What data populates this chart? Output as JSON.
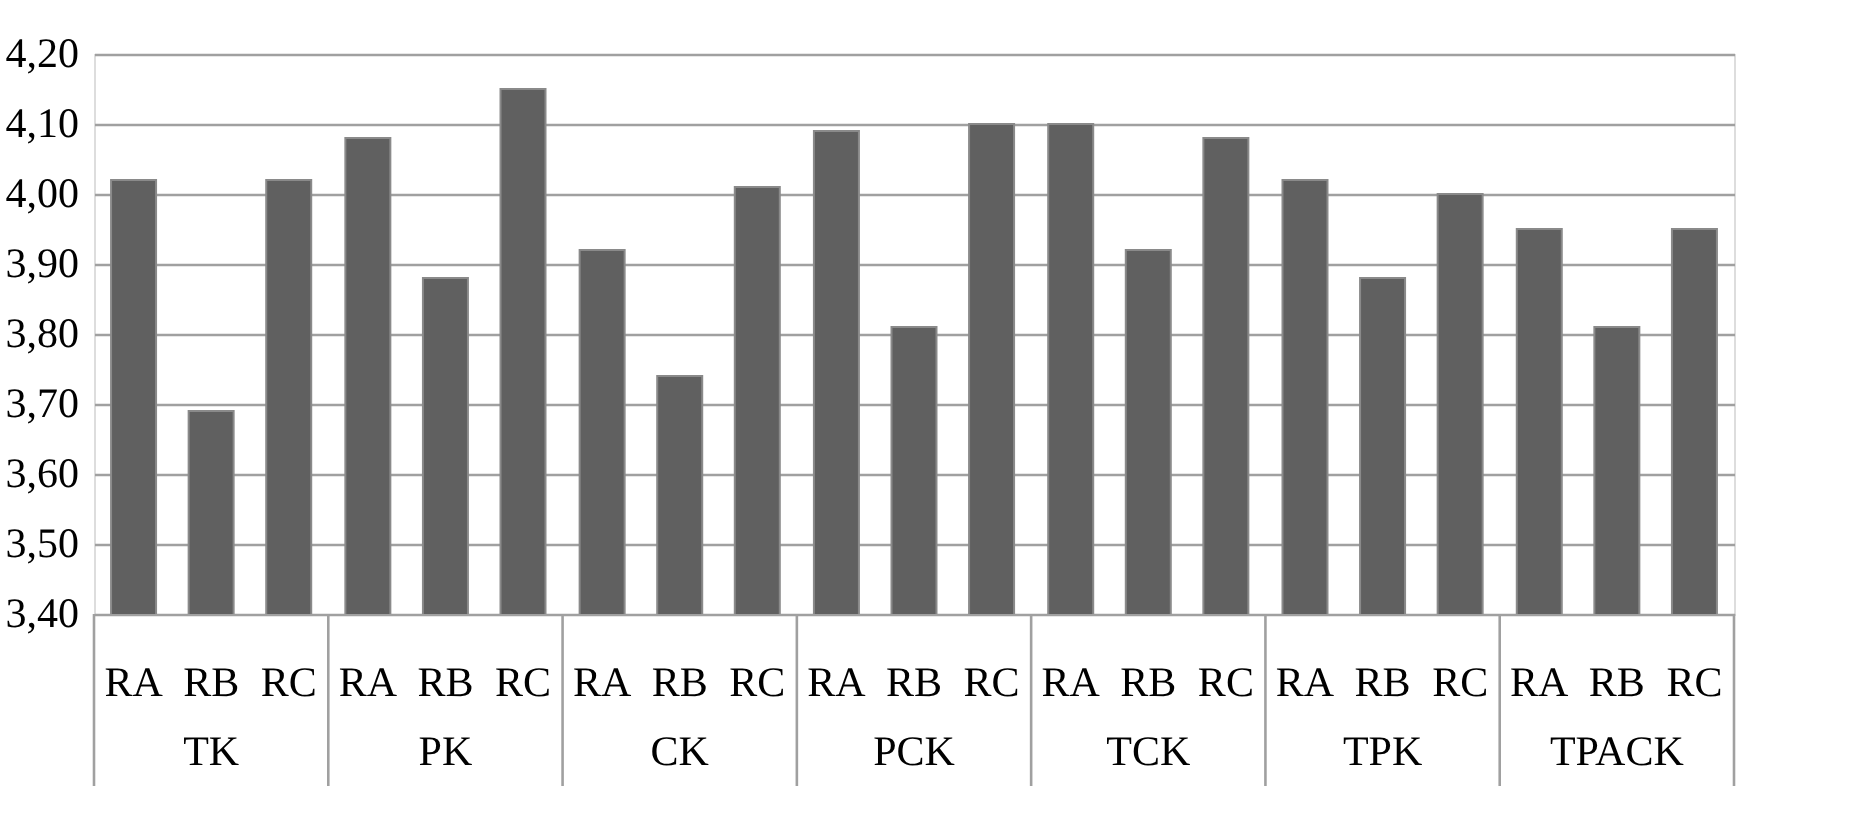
{
  "chart_data": {
    "type": "bar",
    "categories": [
      "TK",
      "PK",
      "CK",
      "PCK",
      "TCK",
      "TPK",
      "TPACK"
    ],
    "series": [
      {
        "name": "RA",
        "color": "#606060",
        "values": [
          4.02,
          4.08,
          3.92,
          4.09,
          4.1,
          4.02,
          3.95
        ]
      },
      {
        "name": "RB",
        "color": "#606060",
        "values": [
          3.69,
          3.88,
          3.74,
          3.81,
          3.92,
          3.88,
          3.81
        ]
      },
      {
        "name": "RC",
        "color": "#606060",
        "values": [
          4.02,
          4.15,
          4.01,
          4.1,
          4.08,
          4.0,
          3.95
        ]
      }
    ],
    "ylim": [
      3.4,
      4.2
    ],
    "yticks": [
      {
        "value": 3.4,
        "label": "3,40"
      },
      {
        "value": 3.5,
        "label": "3,50"
      },
      {
        "value": 3.6,
        "label": "3,60"
      },
      {
        "value": 3.7,
        "label": "3,70"
      },
      {
        "value": 3.8,
        "label": "3,80"
      },
      {
        "value": 3.9,
        "label": "3,90"
      },
      {
        "value": 4.0,
        "label": "4,00"
      },
      {
        "value": 4.1,
        "label": "4,10"
      },
      {
        "value": 4.2,
        "label": "4,20"
      }
    ],
    "grid": "y",
    "legend": false
  }
}
